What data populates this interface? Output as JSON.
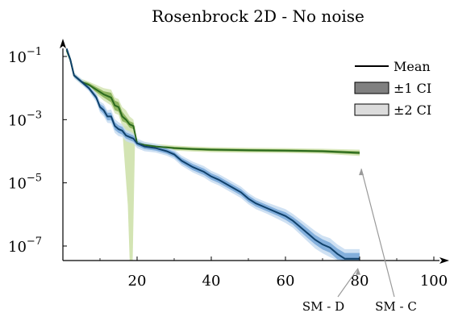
{
  "chart_data": {
    "type": "line",
    "title": "Rosenbrock 2D - No noise",
    "xlabel": "",
    "ylabel": "",
    "xlim": [
      0,
      105
    ],
    "ylim_log10": [
      -7.5,
      -0.6
    ],
    "y_scale": "log",
    "x_ticks": [
      20,
      40,
      60,
      80,
      100
    ],
    "x_tick_labels": [
      "20",
      "40",
      "60",
      "80",
      "100"
    ],
    "y_ticks_exp": [
      -1,
      -3,
      -5,
      -7
    ],
    "y_tick_base": "10",
    "y_tick_exponents": [
      "−1",
      "−3",
      "−5",
      "−7"
    ],
    "grid": false,
    "legend": {
      "placement": "top-right",
      "entries": [
        {
          "label": "Mean",
          "kind": "line",
          "color": "#000000"
        },
        {
          "label": "±1 CI",
          "kind": "box",
          "color": "#808080"
        },
        {
          "label": "±2 CI",
          "kind": "box",
          "color": "#dcdcdc"
        }
      ]
    },
    "annotations": [
      {
        "label": "SM - D",
        "points_to_series": "SM - D",
        "at": [
          80,
          -7.4
        ]
      },
      {
        "label": "SM - C",
        "points_to_series": "SM - C",
        "at": [
          80,
          -4.4
        ]
      }
    ],
    "series": [
      {
        "name": "SM - C",
        "color": "#2c6a1e",
        "band1_color": "#7aa84a",
        "band2_color": "#d3e4b3",
        "x": [
          1,
          2,
          3,
          5,
          7,
          9,
          11,
          13,
          14,
          15,
          16,
          17,
          18,
          19,
          20,
          22,
          25,
          30,
          35,
          40,
          50,
          60,
          70,
          80
        ],
        "log10_mean": [
          -0.8,
          -1.1,
          -1.6,
          -1.8,
          -1.9,
          -2.05,
          -2.2,
          -2.3,
          -2.55,
          -2.6,
          -2.9,
          -3.0,
          -3.15,
          -3.2,
          -3.75,
          -3.8,
          -3.85,
          -3.9,
          -3.93,
          -3.95,
          -3.97,
          -3.98,
          -4.0,
          -4.05
        ],
        "log10_band1": [
          0.06,
          0.06,
          0.05,
          0.05,
          0.06,
          0.08,
          0.1,
          0.15,
          0.15,
          0.15,
          0.15,
          0.1,
          0.1,
          0.1,
          0.06,
          0.05,
          0.04,
          0.04,
          0.04,
          0.04,
          0.04,
          0.04,
          0.04,
          0.05
        ],
        "log10_band2": [
          0.1,
          0.1,
          0.09,
          0.09,
          0.1,
          0.15,
          0.2,
          0.25,
          0.25,
          0.25,
          0.3,
          0.3,
          0.25,
          0.2,
          0.1,
          0.09,
          0.08,
          0.08,
          0.08,
          0.08,
          0.08,
          0.08,
          0.08,
          0.1
        ],
        "dip": {
          "x": [
            16,
            17.5,
            18,
            18.8,
            19.5
          ],
          "log10_low": [
            -3.3,
            -5.7,
            -8.0,
            -8.0,
            -3.35
          ]
        }
      },
      {
        "name": "SM - D",
        "color": "#10416b",
        "band1_color": "#6fa3d6",
        "band2_color": "#c7dcf1",
        "x": [
          1,
          2,
          3,
          5,
          7,
          9,
          10,
          11,
          12,
          13,
          14,
          15,
          16,
          17,
          18,
          19,
          20,
          22,
          25,
          28,
          30,
          32,
          35,
          38,
          40,
          42,
          45,
          48,
          50,
          52,
          55,
          58,
          60,
          62,
          64,
          66,
          68,
          70,
          72,
          74,
          76,
          78,
          80
        ],
        "log10_mean": [
          -0.75,
          -1.1,
          -1.6,
          -1.8,
          -2.0,
          -2.3,
          -2.6,
          -2.7,
          -2.9,
          -2.9,
          -3.2,
          -3.3,
          -3.35,
          -3.5,
          -3.55,
          -3.6,
          -3.75,
          -3.85,
          -3.9,
          -4.0,
          -4.1,
          -4.3,
          -4.5,
          -4.65,
          -4.8,
          -4.9,
          -5.1,
          -5.3,
          -5.5,
          -5.65,
          -5.8,
          -5.95,
          -6.05,
          -6.2,
          -6.4,
          -6.6,
          -6.8,
          -6.95,
          -7.05,
          -7.25,
          -7.4,
          -7.4,
          -7.4
        ],
        "log10_band1": [
          0.05,
          0.05,
          0.05,
          0.05,
          0.06,
          0.08,
          0.1,
          0.12,
          0.12,
          0.12,
          0.12,
          0.12,
          0.12,
          0.1,
          0.1,
          0.1,
          0.08,
          0.08,
          0.08,
          0.08,
          0.08,
          0.09,
          0.1,
          0.1,
          0.1,
          0.1,
          0.1,
          0.1,
          0.1,
          0.1,
          0.1,
          0.1,
          0.12,
          0.12,
          0.14,
          0.15,
          0.15,
          0.16,
          0.16,
          0.17,
          0.18,
          0.18,
          0.18
        ],
        "log10_band2": [
          0.09,
          0.09,
          0.09,
          0.09,
          0.1,
          0.15,
          0.18,
          0.2,
          0.2,
          0.22,
          0.22,
          0.22,
          0.2,
          0.18,
          0.18,
          0.16,
          0.15,
          0.15,
          0.14,
          0.14,
          0.15,
          0.16,
          0.17,
          0.18,
          0.18,
          0.18,
          0.18,
          0.18,
          0.18,
          0.18,
          0.18,
          0.2,
          0.22,
          0.22,
          0.24,
          0.26,
          0.28,
          0.28,
          0.3,
          0.3,
          0.3,
          0.3,
          0.3
        ]
      }
    ]
  }
}
